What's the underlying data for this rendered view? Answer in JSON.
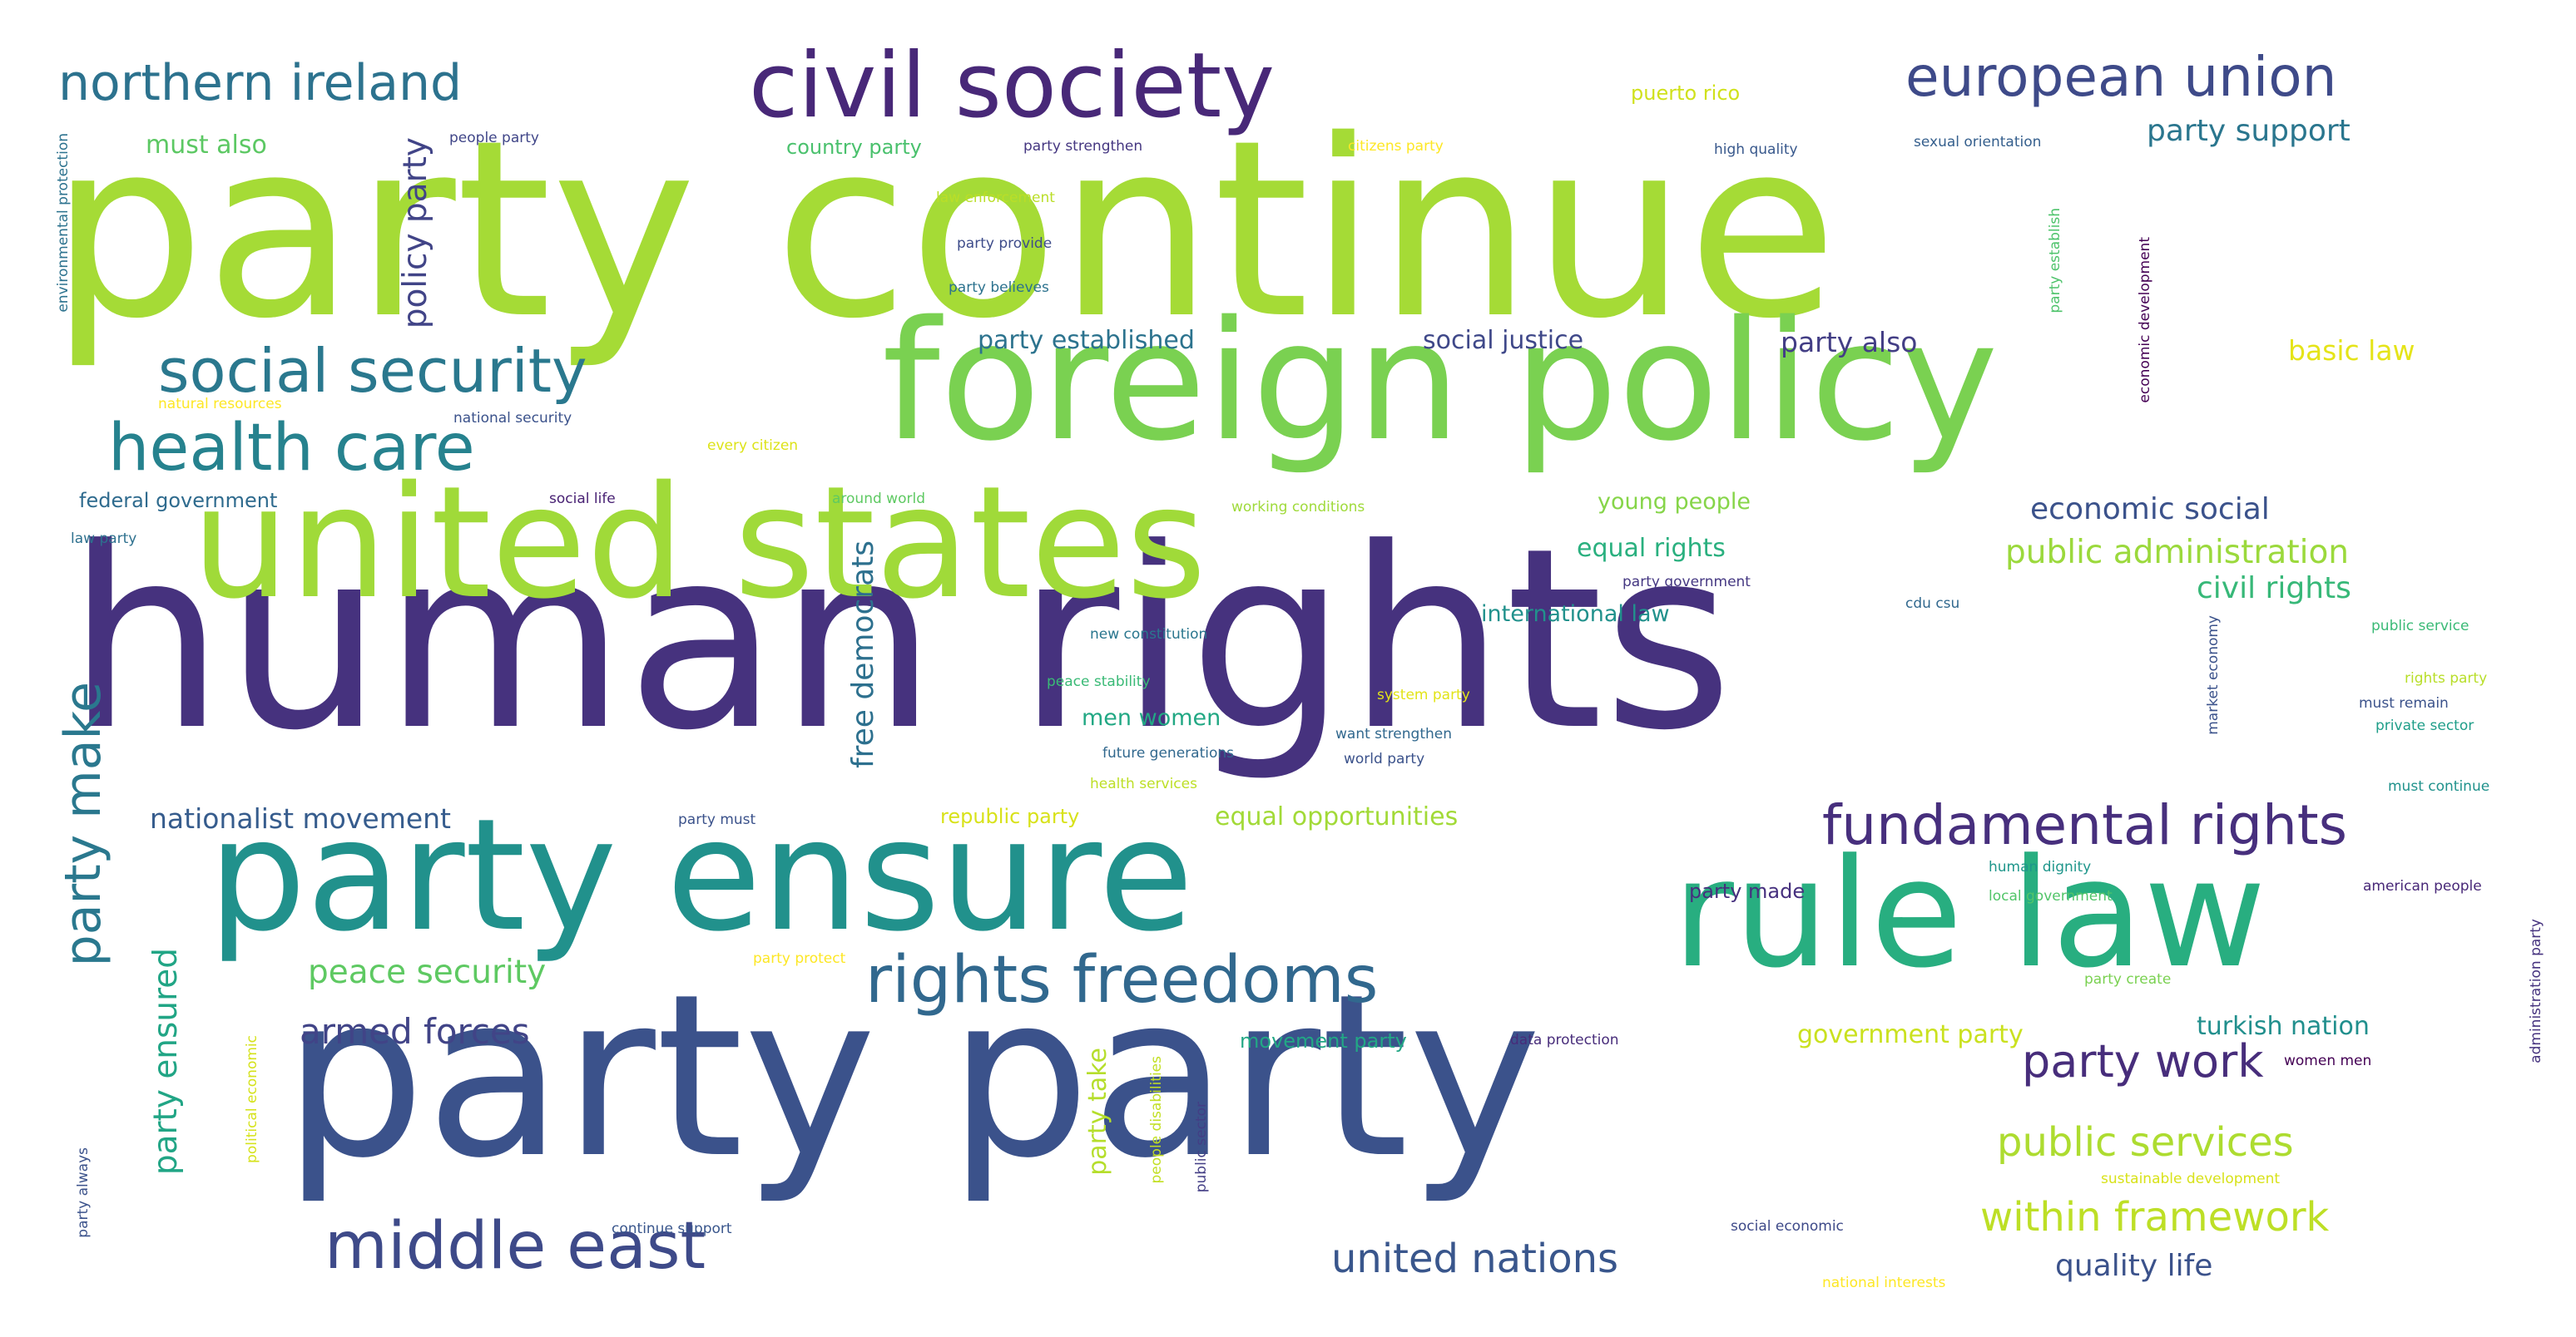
{
  "words": [
    {
      "text": "human rights",
      "weight": 1.0,
      "color": "#46327e",
      "orientation": "h"
    },
    {
      "text": "party continue",
      "weight": 0.98,
      "color": "#a5db36",
      "orientation": "h"
    },
    {
      "text": "party party",
      "weight": 0.9,
      "color": "#3b528b",
      "orientation": "h"
    },
    {
      "text": "foreign policy",
      "weight": 0.66,
      "color": "#7ad151",
      "orientation": "h"
    },
    {
      "text": "united states",
      "weight": 0.62,
      "color": "#a0da39",
      "orientation": "h"
    },
    {
      "text": "party ensure",
      "weight": 0.62,
      "color": "#21918c",
      "orientation": "h"
    },
    {
      "text": "rule law",
      "weight": 0.6,
      "color": "#28ae80",
      "orientation": "h"
    },
    {
      "text": "civil society",
      "weight": 0.36,
      "color": "#482878",
      "orientation": "h"
    },
    {
      "text": "rights freedoms",
      "weight": 0.26,
      "color": "#31688e",
      "orientation": "h"
    },
    {
      "text": "middle east",
      "weight": 0.26,
      "color": "#3e4a89",
      "orientation": "h"
    },
    {
      "text": "health care",
      "weight": 0.26,
      "color": "#26828e",
      "orientation": "h"
    },
    {
      "text": "social security",
      "weight": 0.24,
      "color": "#2a788e",
      "orientation": "h"
    },
    {
      "text": "fundamental rights",
      "weight": 0.22,
      "color": "#472f7d",
      "orientation": "h"
    },
    {
      "text": "european union",
      "weight": 0.22,
      "color": "#3e4a89",
      "orientation": "h"
    },
    {
      "text": "northern ireland",
      "weight": 0.2,
      "color": "#2c728e",
      "orientation": "h"
    },
    {
      "text": "party make",
      "weight": 0.2,
      "color": "#2a788e",
      "orientation": "v"
    },
    {
      "text": "party work",
      "weight": 0.18,
      "color": "#472d7b",
      "orientation": "h"
    },
    {
      "text": "within framework",
      "weight": 0.16,
      "color": "#bddf26",
      "orientation": "h"
    },
    {
      "text": "united nations",
      "weight": 0.16,
      "color": "#39568c",
      "orientation": "h"
    },
    {
      "text": "public services",
      "weight": 0.16,
      "color": "#addc30",
      "orientation": "h"
    },
    {
      "text": "armed forces",
      "weight": 0.14,
      "color": "#414487",
      "orientation": "h"
    },
    {
      "text": "peace security",
      "weight": 0.13,
      "color": "#5ec962",
      "orientation": "h"
    },
    {
      "text": "party ensured",
      "weight": 0.13,
      "color": "#21a585",
      "orientation": "v"
    },
    {
      "text": "public administration",
      "weight": 0.13,
      "color": "#9bd93c",
      "orientation": "h"
    },
    {
      "text": "policy party",
      "weight": 0.13,
      "color": "#414487",
      "orientation": "v"
    },
    {
      "text": "quality life",
      "weight": 0.12,
      "color": "#3b528b",
      "orientation": "h"
    },
    {
      "text": "free democrats",
      "weight": 0.12,
      "color": "#2d708e",
      "orientation": "v"
    },
    {
      "text": "economic social",
      "weight": 0.12,
      "color": "#3b528b",
      "orientation": "h"
    },
    {
      "text": "civil rights",
      "weight": 0.12,
      "color": "#37b878",
      "orientation": "h"
    },
    {
      "text": "party support",
      "weight": 0.12,
      "color": "#2a768e",
      "orientation": "h"
    },
    {
      "text": "nationalist movement",
      "weight": 0.11,
      "color": "#365c8d",
      "orientation": "h"
    },
    {
      "text": "party also",
      "weight": 0.11,
      "color": "#433e85",
      "orientation": "h"
    },
    {
      "text": "basic law",
      "weight": 0.11,
      "color": "#e5e419",
      "orientation": "h"
    },
    {
      "text": "turkish nation",
      "weight": 0.1,
      "color": "#218f8d",
      "orientation": "h"
    },
    {
      "text": "government party",
      "weight": 0.1,
      "color": "#cae11f",
      "orientation": "h"
    },
    {
      "text": "party take",
      "weight": 0.1,
      "color": "#b5de2b",
      "orientation": "v"
    },
    {
      "text": "equal opportunities",
      "weight": 0.1,
      "color": "#a2da37",
      "orientation": "h"
    },
    {
      "text": "social justice",
      "weight": 0.1,
      "color": "#3f4889",
      "orientation": "h"
    },
    {
      "text": "party established",
      "weight": 0.1,
      "color": "#2c738e",
      "orientation": "h"
    },
    {
      "text": "equal rights",
      "weight": 0.1,
      "color": "#2ab07f",
      "orientation": "h"
    },
    {
      "text": "must also",
      "weight": 0.1,
      "color": "#5cc863",
      "orientation": "h"
    },
    {
      "text": "men women",
      "weight": 0.09,
      "color": "#22a884",
      "orientation": "h"
    },
    {
      "text": "young people",
      "weight": 0.09,
      "color": "#86d549",
      "orientation": "h"
    },
    {
      "text": "international law",
      "weight": 0.09,
      "color": "#21918c",
      "orientation": "h"
    },
    {
      "text": "republic party",
      "weight": 0.08,
      "color": "#d8e219",
      "orientation": "h"
    },
    {
      "text": "federal government",
      "weight": 0.08,
      "color": "#2f6b8e",
      "orientation": "h"
    },
    {
      "text": "party made",
      "weight": 0.08,
      "color": "#46307e",
      "orientation": "h"
    },
    {
      "text": "movement party",
      "weight": 0.08,
      "color": "#22a785",
      "orientation": "h"
    },
    {
      "text": "country party",
      "weight": 0.08,
      "color": "#4ac16d",
      "orientation": "h"
    },
    {
      "text": "puerto rico",
      "weight": 0.08,
      "color": "#d0e11c",
      "orientation": "h"
    },
    {
      "text": "party strengthen",
      "weight": 0.05,
      "color": "#453781",
      "orientation": "h"
    },
    {
      "text": "people party",
      "weight": 0.05,
      "color": "#404688",
      "orientation": "h"
    },
    {
      "text": "citizens party",
      "weight": 0.05,
      "color": "#fde725",
      "orientation": "h"
    },
    {
      "text": "high quality",
      "weight": 0.05,
      "color": "#38588c",
      "orientation": "h"
    },
    {
      "text": "sexual orientation",
      "weight": 0.05,
      "color": "#355f8d",
      "orientation": "h"
    },
    {
      "text": "law enforcement",
      "weight": 0.05,
      "color": "#bade28",
      "orientation": "h"
    },
    {
      "text": "party provide",
      "weight": 0.05,
      "color": "#3e4c8a",
      "orientation": "h"
    },
    {
      "text": "party believes",
      "weight": 0.05,
      "color": "#2c728e",
      "orientation": "h"
    },
    {
      "text": "party establish",
      "weight": 0.045,
      "color": "#4ec36b",
      "orientation": "v"
    },
    {
      "text": "economic development",
      "weight": 0.045,
      "color": "#440154",
      "orientation": "v"
    },
    {
      "text": "environmental protection",
      "weight": 0.05,
      "color": "#2c728e",
      "orientation": "v"
    },
    {
      "text": "natural resources",
      "weight": 0.045,
      "color": "#fde725",
      "orientation": "h"
    },
    {
      "text": "national security",
      "weight": 0.045,
      "color": "#3b528b",
      "orientation": "h"
    },
    {
      "text": "every citizen",
      "weight": 0.045,
      "color": "#dde318",
      "orientation": "h"
    },
    {
      "text": "social life",
      "weight": 0.045,
      "color": "#482173",
      "orientation": "h"
    },
    {
      "text": "around world",
      "weight": 0.045,
      "color": "#5ec962",
      "orientation": "h"
    },
    {
      "text": "working conditions",
      "weight": 0.045,
      "color": "#9fda3a",
      "orientation": "h"
    },
    {
      "text": "law party",
      "weight": 0.045,
      "color": "#2d708e",
      "orientation": "h"
    },
    {
      "text": "party government",
      "weight": 0.045,
      "color": "#453882",
      "orientation": "h"
    },
    {
      "text": "cdu csu",
      "weight": 0.045,
      "color": "#31688e",
      "orientation": "h"
    },
    {
      "text": "new constitution",
      "weight": 0.045,
      "color": "#2a768e",
      "orientation": "h"
    },
    {
      "text": "public service",
      "weight": 0.045,
      "color": "#3aba76",
      "orientation": "h"
    },
    {
      "text": "market economy",
      "weight": 0.045,
      "color": "#3b528b",
      "orientation": "v"
    },
    {
      "text": "peace stability",
      "weight": 0.045,
      "color": "#3aba76",
      "orientation": "h"
    },
    {
      "text": "system party",
      "weight": 0.045,
      "color": "#e2e418",
      "orientation": "h"
    },
    {
      "text": "rights party",
      "weight": 0.045,
      "color": "#b8de29",
      "orientation": "h"
    },
    {
      "text": "must remain",
      "weight": 0.045,
      "color": "#3b528b",
      "orientation": "h"
    },
    {
      "text": "want strengthen",
      "weight": 0.045,
      "color": "#31688e",
      "orientation": "h"
    },
    {
      "text": "private sector",
      "weight": 0.045,
      "color": "#1f9e89",
      "orientation": "h"
    },
    {
      "text": "future generations",
      "weight": 0.045,
      "color": "#31688e",
      "orientation": "h"
    },
    {
      "text": "world party",
      "weight": 0.045,
      "color": "#3b528b",
      "orientation": "h"
    },
    {
      "text": "health services",
      "weight": 0.045,
      "color": "#bddf26",
      "orientation": "h"
    },
    {
      "text": "must continue",
      "weight": 0.045,
      "color": "#20928c",
      "orientation": "h"
    },
    {
      "text": "party must",
      "weight": 0.045,
      "color": "#3b528b",
      "orientation": "h"
    },
    {
      "text": "human dignity",
      "weight": 0.045,
      "color": "#1f968b",
      "orientation": "h"
    },
    {
      "text": "local government",
      "weight": 0.045,
      "color": "#52c569",
      "orientation": "h"
    },
    {
      "text": "american people",
      "weight": 0.045,
      "color": "#482878",
      "orientation": "h"
    },
    {
      "text": "administration party",
      "weight": 0.045,
      "color": "#46337f",
      "orientation": "v"
    },
    {
      "text": "party protect",
      "weight": 0.045,
      "color": "#fde725",
      "orientation": "h"
    },
    {
      "text": "party create",
      "weight": 0.045,
      "color": "#7ad151",
      "orientation": "h"
    },
    {
      "text": "data protection",
      "weight": 0.045,
      "color": "#472c7a",
      "orientation": "h"
    },
    {
      "text": "political economic",
      "weight": 0.045,
      "color": "#d5e21a",
      "orientation": "v"
    },
    {
      "text": "people disabilities",
      "weight": 0.045,
      "color": "#c2df23",
      "orientation": "v"
    },
    {
      "text": "public sector",
      "weight": 0.045,
      "color": "#433e85",
      "orientation": "v"
    },
    {
      "text": "women men",
      "weight": 0.04,
      "color": "#440154",
      "orientation": "h"
    },
    {
      "text": "sustainable development",
      "weight": 0.045,
      "color": "#d8e219",
      "orientation": "h"
    },
    {
      "text": "party always",
      "weight": 0.045,
      "color": "#3b528b",
      "orientation": "v"
    },
    {
      "text": "continue support",
      "weight": 0.045,
      "color": "#39568c",
      "orientation": "h"
    },
    {
      "text": "social economic",
      "weight": 0.045,
      "color": "#3e4a89",
      "orientation": "h"
    },
    {
      "text": "national interests",
      "weight": 0.045,
      "color": "#fde725",
      "orientation": "h"
    }
  ]
}
